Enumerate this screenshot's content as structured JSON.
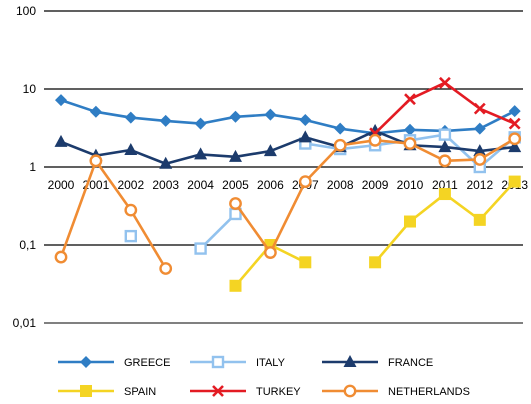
{
  "chart_data": {
    "type": "line",
    "title": "",
    "xlabel": "",
    "ylabel": "",
    "y_scale": "log",
    "ylim": [
      0.01,
      100
    ],
    "y_tick_labels": [
      "100",
      "10",
      "1",
      "0,1",
      "0,01"
    ],
    "y_tick_values": [
      100,
      10,
      1,
      0.1,
      0.01
    ],
    "grid": "horizontal",
    "legend_position": "bottom",
    "categories": [
      "2000",
      "2001",
      "2002",
      "2003",
      "2004",
      "2005",
      "2006",
      "2007",
      "2008",
      "2009",
      "2010",
      "2011",
      "2012",
      "2013"
    ],
    "series": [
      {
        "name": "GREECE",
        "color": "#2f7dc4",
        "marker": "diamond",
        "values": [
          7.2,
          5.1,
          4.3,
          3.9,
          3.6,
          4.4,
          4.7,
          4.0,
          3.1,
          2.7,
          3.0,
          2.9,
          3.1,
          5.2
        ]
      },
      {
        "name": "ITALY",
        "color": "#92c2ee",
        "marker": "square-open",
        "values": [
          null,
          null,
          0.13,
          null,
          0.09,
          0.25,
          null,
          2.0,
          1.7,
          1.9,
          2.2,
          2.6,
          1.0,
          2.4
        ]
      },
      {
        "name": "FRANCE",
        "color": "#1c3b6c",
        "marker": "triangle",
        "values": [
          2.1,
          1.4,
          1.65,
          1.1,
          1.45,
          1.35,
          1.6,
          2.4,
          1.8,
          2.9,
          1.9,
          1.8,
          1.6,
          1.8
        ]
      },
      {
        "name": "SPAIN",
        "color": "#f4d423",
        "marker": "square",
        "values": [
          null,
          null,
          null,
          null,
          null,
          0.03,
          0.1,
          0.06,
          null,
          0.06,
          0.2,
          0.45,
          0.21,
          0.65
        ]
      },
      {
        "name": "TURKEY",
        "color": "#e31b23",
        "marker": "x",
        "values": [
          null,
          null,
          null,
          null,
          null,
          null,
          null,
          null,
          null,
          2.7,
          7.4,
          12.0,
          5.6,
          3.6
        ]
      },
      {
        "name": "NETHERLANDS",
        "color": "#f08c33",
        "marker": "circle-open",
        "values": [
          0.07,
          1.2,
          0.28,
          0.05,
          null,
          0.34,
          0.08,
          0.65,
          1.9,
          2.2,
          2.0,
          1.2,
          1.25,
          2.3
        ]
      }
    ]
  }
}
